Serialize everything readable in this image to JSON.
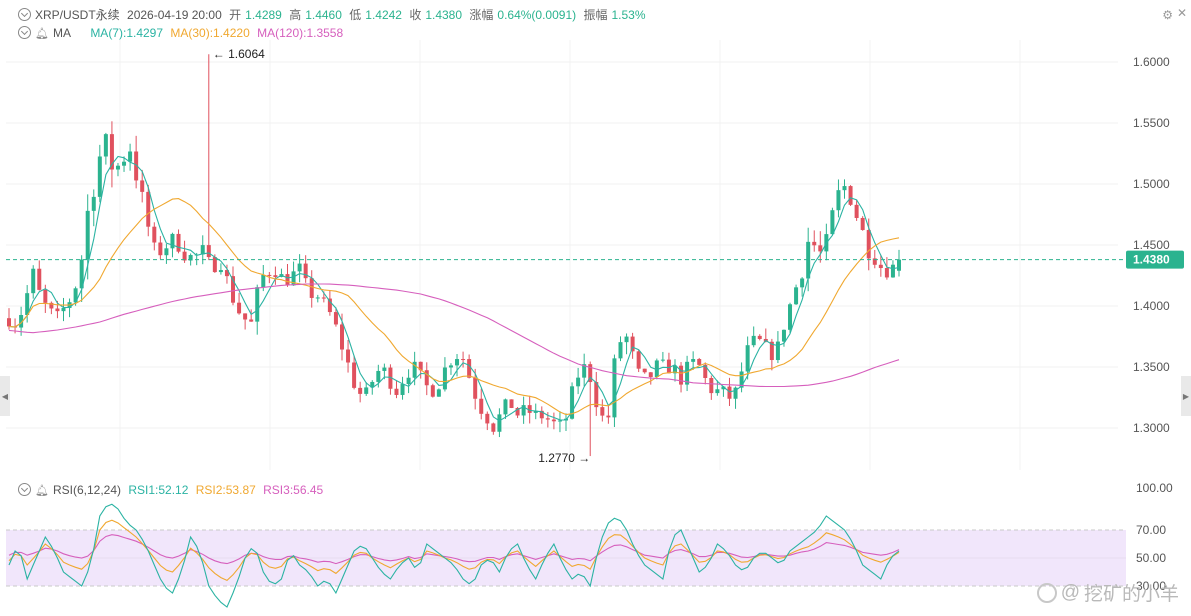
{
  "header": {
    "symbol": "XRP/USDT永续",
    "datetime": "2026-04-19 20:00",
    "open_label": "开",
    "open": "1.4289",
    "high_label": "高",
    "high": "1.4460",
    "low_label": "低",
    "low": "1.4242",
    "close_label": "收",
    "close": "1.4380",
    "change_label": "涨幅",
    "change": "0.64%(0.0091)",
    "amplitude_label": "振幅",
    "amplitude": "1.53%"
  },
  "ma_legend": {
    "label": "MA",
    "ma7": "MA(7):1.4297",
    "ma30": "MA(30):1.4220",
    "ma120": "MA(120):1.3558"
  },
  "rsi_legend": {
    "label": "RSI(6,12,24)",
    "rsi1": "RSI1:52.12",
    "rsi2": "RSI2:53.87",
    "rsi3": "RSI3:56.45"
  },
  "watermark": "挖矿的小羊",
  "colors": {
    "up": "#2bb38f",
    "down": "#e0515e",
    "ma7": "#2bb3a3",
    "ma30": "#f0a830",
    "ma120": "#d65fbd",
    "rsi_band": "#f1e6fb",
    "price_tag": "#2bb38f"
  },
  "chart_data": [
    {
      "type": "candlestick",
      "price_axis_ticks": [
        "1.6000",
        "1.5500",
        "1.5000",
        "1.4500",
        "1.4000",
        "1.3500",
        "1.3000"
      ],
      "ylim": [
        1.27,
        1.62
      ],
      "last_price": "1.4380",
      "high_annotation": "1.6064",
      "low_annotation": "1.2770",
      "ma_current": {
        "ma7": 1.4297,
        "ma30": 1.422,
        "ma120": 1.3558
      },
      "close_path": [
        1.39,
        1.385,
        1.405,
        1.425,
        1.405,
        1.395,
        1.39,
        1.4,
        1.41,
        1.44,
        1.49,
        1.52,
        1.53,
        1.51,
        1.52,
        1.53,
        1.5,
        1.47,
        1.445,
        1.445,
        1.455,
        1.45,
        1.44,
        1.44,
        1.445,
        1.43,
        1.44,
        1.42,
        1.4,
        1.39,
        1.385,
        1.42,
        1.43,
        1.43,
        1.42,
        1.425,
        1.43,
        1.41,
        1.41,
        1.4,
        1.39,
        1.37,
        1.35,
        1.33,
        1.325,
        1.34,
        1.35,
        1.34,
        1.33,
        1.345,
        1.35,
        1.34,
        1.33,
        1.335,
        1.35,
        1.36,
        1.36,
        1.34,
        1.32,
        1.31,
        1.3,
        1.315,
        1.32,
        1.31,
        1.315,
        1.31,
        1.31,
        1.305,
        1.3,
        1.31,
        1.34,
        1.35,
        1.34,
        1.31,
        1.305,
        1.36,
        1.38,
        1.36,
        1.34,
        1.34,
        1.35,
        1.35,
        1.35,
        1.34,
        1.35,
        1.355,
        1.34,
        1.33,
        1.33,
        1.325,
        1.33,
        1.36,
        1.37,
        1.37,
        1.36,
        1.365,
        1.39,
        1.41,
        1.43,
        1.46,
        1.44,
        1.45,
        1.48,
        1.5,
        1.49,
        1.47,
        1.45,
        1.44,
        1.43,
        1.43,
        1.438
      ],
      "volatility_path": [
        0.015,
        0.015,
        0.015,
        0.02,
        0.015,
        0.015,
        0.015,
        0.015,
        0.015,
        0.02,
        0.035,
        0.04,
        0.03,
        0.025,
        0.02,
        0.02,
        0.025,
        0.02,
        0.015,
        0.015,
        0.015,
        0.015,
        0.015,
        0.015,
        0.015,
        0.015,
        0.015,
        0.015,
        0.015,
        0.015,
        0.015,
        0.02,
        0.02,
        0.015,
        0.015,
        0.015,
        0.015,
        0.015,
        0.015,
        0.015,
        0.015,
        0.015,
        0.015,
        0.015,
        0.015,
        0.015,
        0.015,
        0.015,
        0.015,
        0.015,
        0.015,
        0.015,
        0.015,
        0.015,
        0.015,
        0.015,
        0.015,
        0.015,
        0.015,
        0.015,
        0.015,
        0.015,
        0.015,
        0.015,
        0.015,
        0.015,
        0.015,
        0.015,
        0.015,
        0.015,
        0.015,
        0.015,
        0.015,
        0.015,
        0.015,
        0.02,
        0.02,
        0.015,
        0.015,
        0.015,
        0.015,
        0.015,
        0.015,
        0.015,
        0.015,
        0.015,
        0.015,
        0.015,
        0.015,
        0.015,
        0.015,
        0.015,
        0.015,
        0.015,
        0.015,
        0.015,
        0.015,
        0.015,
        0.02,
        0.025,
        0.02,
        0.02,
        0.02,
        0.025,
        0.02,
        0.02,
        0.02,
        0.015,
        0.015,
        0.015,
        0.012
      ],
      "ma120_path": [
        1.38,
        1.378,
        1.38,
        1.383,
        1.387,
        1.393,
        1.398,
        1.403,
        1.407,
        1.41,
        1.413,
        1.415,
        1.417,
        1.418,
        1.418,
        1.417,
        1.415,
        1.413,
        1.41,
        1.405,
        1.398,
        1.39,
        1.38,
        1.37,
        1.36,
        1.352,
        1.347,
        1.343,
        1.341,
        1.34,
        1.337,
        1.336,
        1.335,
        1.334,
        1.334,
        1.335,
        1.338,
        1.343,
        1.35,
        1.356
      ]
    },
    {
      "type": "line",
      "name": "RSI(6,12,24)",
      "rsi_axis_ticks": [
        "100.00",
        "70.00",
        "50.00",
        "30.00"
      ],
      "ylim": [
        0,
        100
      ],
      "band": [
        30,
        70
      ],
      "rsi1_path": [
        45,
        60,
        35,
        50,
        65,
        55,
        40,
        35,
        30,
        45,
        80,
        90,
        85,
        75,
        70,
        60,
        45,
        30,
        25,
        40,
        65,
        55,
        30,
        20,
        15,
        30,
        50,
        60,
        40,
        30,
        35,
        55,
        45,
        40,
        30,
        35,
        25,
        40,
        55,
        60,
        50,
        40,
        35,
        45,
        50,
        40,
        60,
        55,
        50,
        45,
        35,
        30,
        45,
        50,
        40,
        55,
        60,
        45,
        35,
        50,
        60,
        45,
        35,
        40,
        30,
        60,
        75,
        80,
        70,
        55,
        45,
        40,
        35,
        65,
        70,
        55,
        40,
        45,
        60,
        55,
        45,
        40,
        50,
        55,
        50,
        45,
        55,
        60,
        65,
        70,
        80,
        75,
        70,
        60,
        45,
        40,
        35,
        50,
        55
      ],
      "rsi2_path": [
        48,
        55,
        45,
        52,
        60,
        55,
        47,
        44,
        42,
        48,
        70,
        78,
        75,
        70,
        65,
        58,
        50,
        42,
        40,
        47,
        57,
        52,
        43,
        37,
        34,
        40,
        50,
        55,
        47,
        42,
        44,
        52,
        48,
        45,
        41,
        43,
        39,
        45,
        52,
        55,
        50,
        46,
        43,
        47,
        50,
        46,
        55,
        53,
        50,
        48,
        44,
        41,
        47,
        50,
        46,
        53,
        55,
        49,
        44,
        50,
        55,
        49,
        44,
        46,
        42,
        55,
        64,
        68,
        63,
        56,
        50,
        47,
        45,
        58,
        60,
        54,
        47,
        48,
        55,
        54,
        49,
        46,
        50,
        53,
        51,
        49,
        53,
        56,
        58,
        62,
        68,
        66,
        63,
        58,
        52,
        49,
        47,
        50,
        54
      ],
      "rsi3_path": [
        52,
        55,
        52,
        54,
        57,
        56,
        53,
        51,
        50,
        52,
        62,
        67,
        66,
        64,
        62,
        59,
        55,
        51,
        50,
        52,
        56,
        54,
        50,
        47,
        46,
        48,
        52,
        54,
        51,
        49,
        49,
        52,
        50,
        49,
        47,
        48,
        46,
        48,
        51,
        53,
        51,
        49,
        48,
        49,
        51,
        49,
        53,
        52,
        51,
        50,
        48,
        47,
        49,
        51,
        49,
        52,
        53,
        51,
        49,
        51,
        53,
        51,
        49,
        50,
        48,
        53,
        57,
        60,
        58,
        55,
        52,
        51,
        50,
        55,
        56,
        54,
        51,
        51,
        54,
        54,
        52,
        50,
        51,
        53,
        52,
        51,
        52,
        54,
        55,
        57,
        61,
        60,
        59,
        57,
        54,
        53,
        52,
        53,
        56
      ]
    }
  ]
}
